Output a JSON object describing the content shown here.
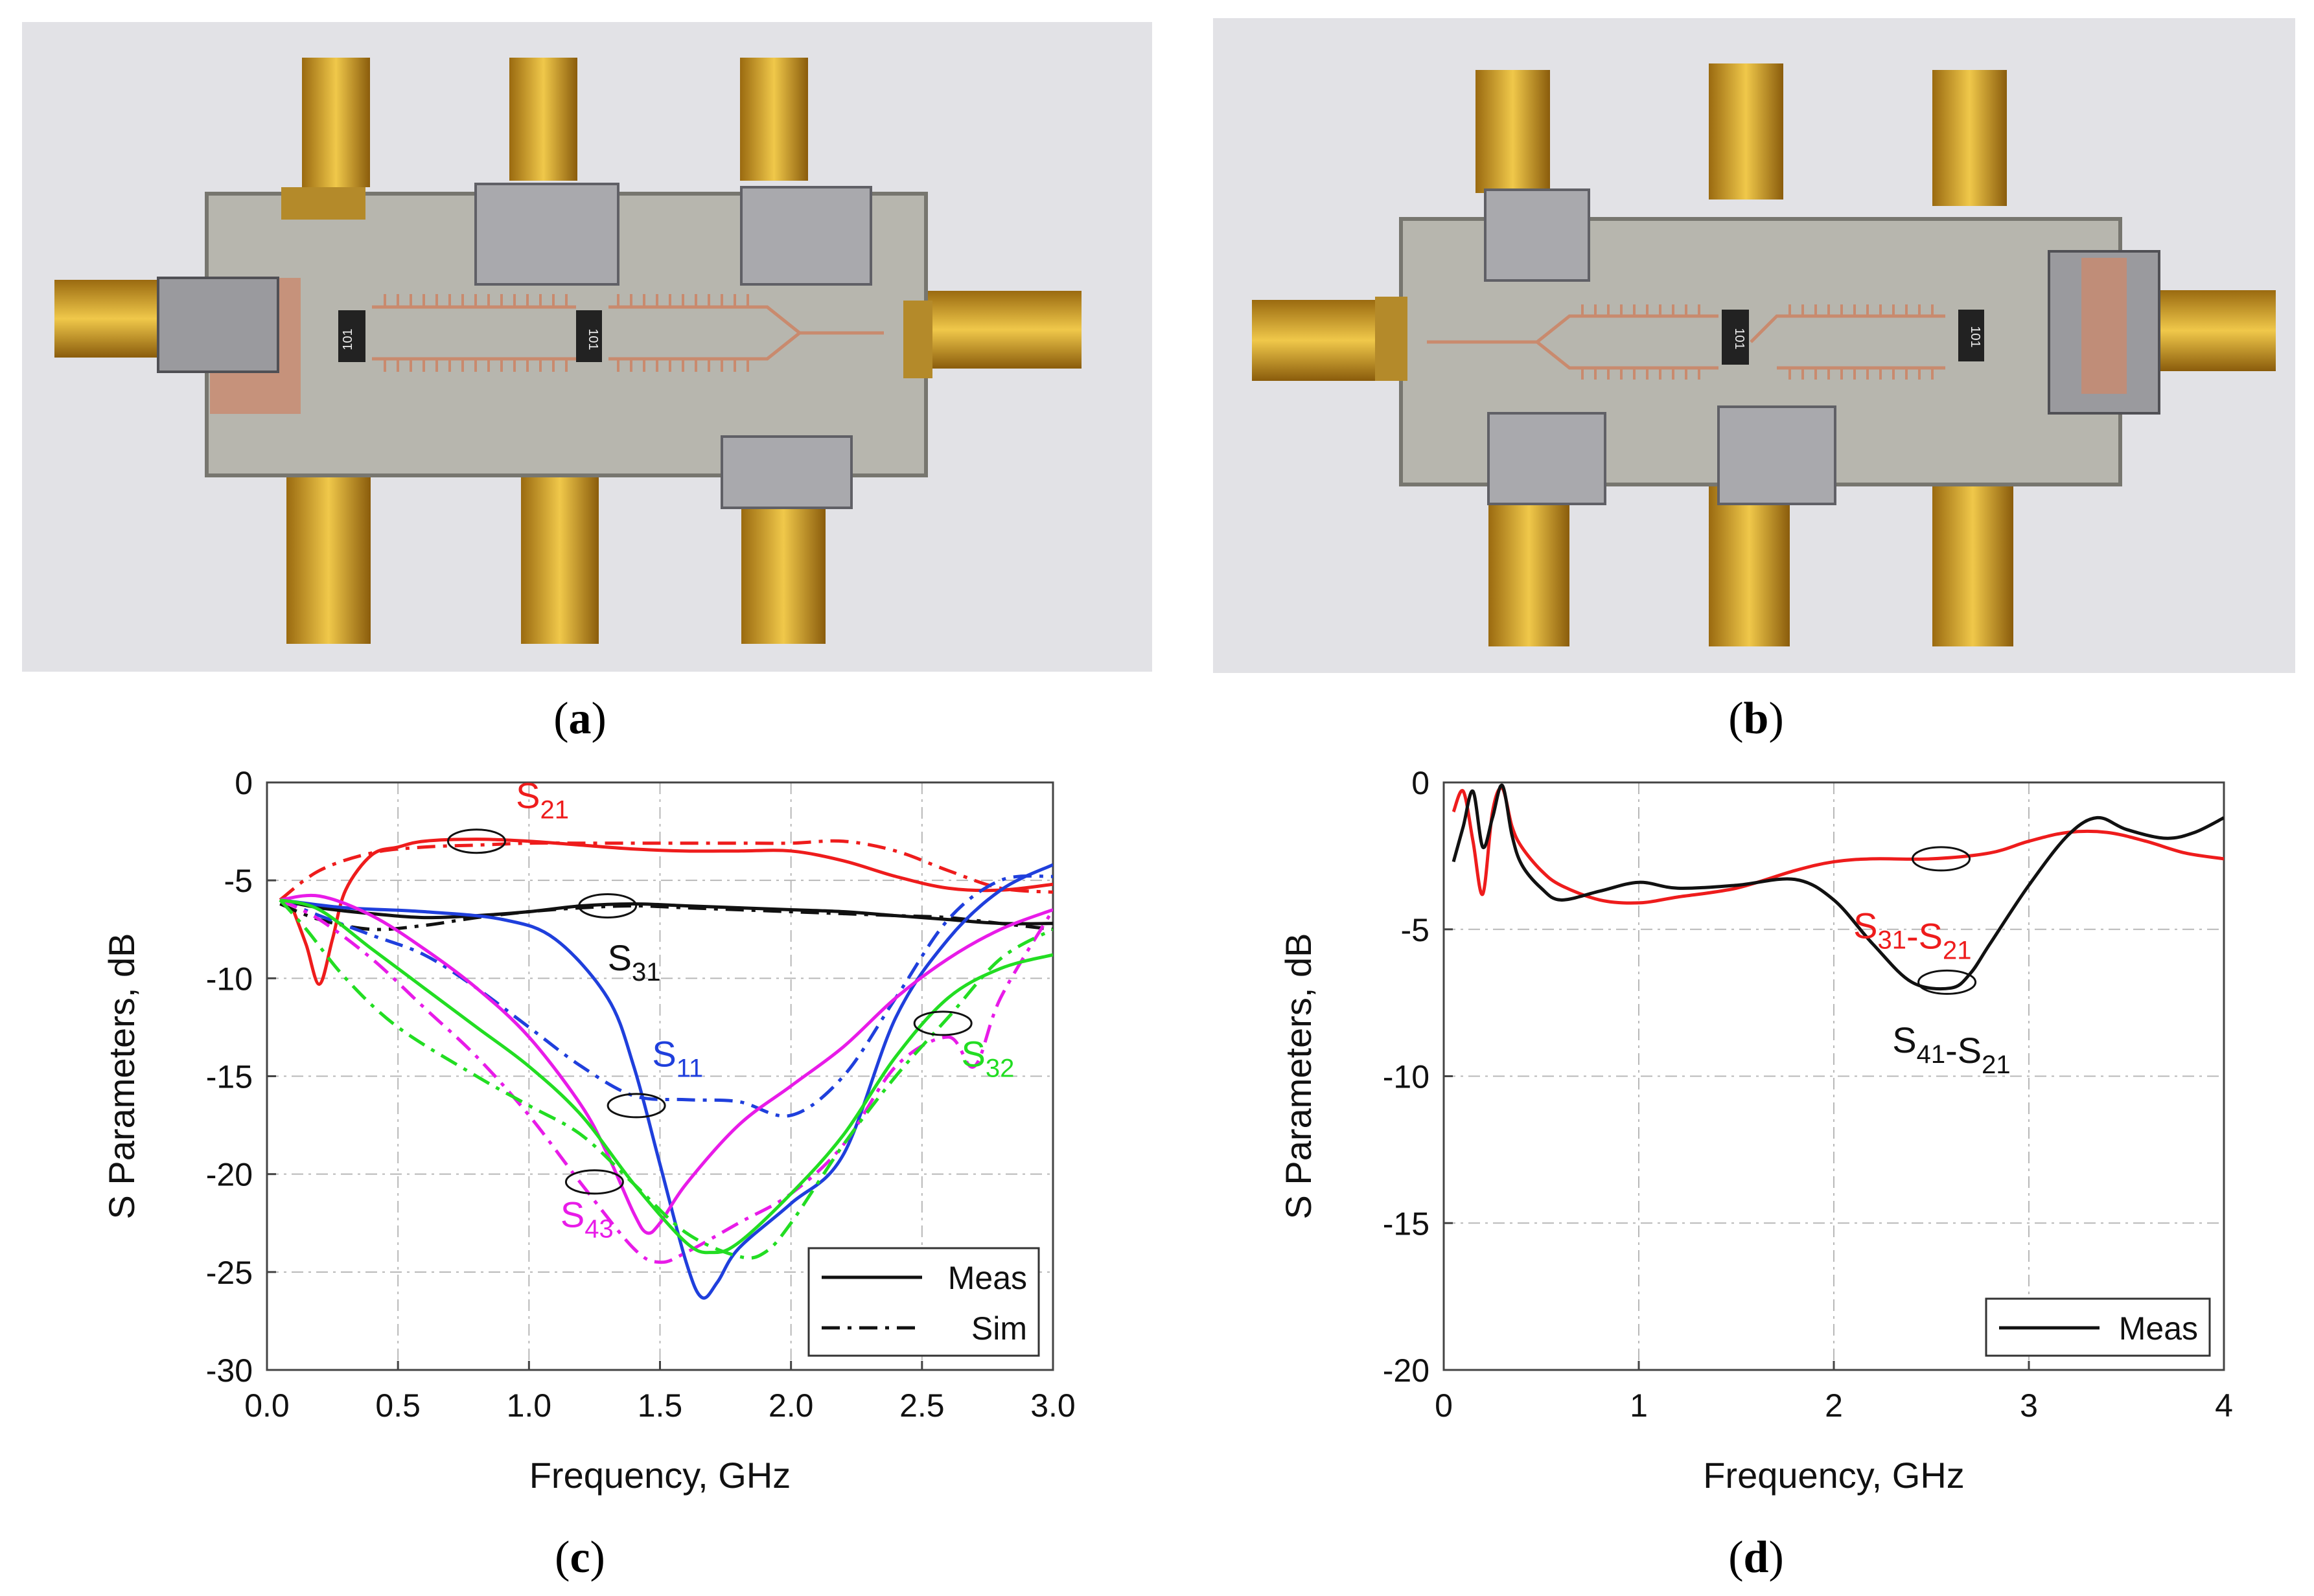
{
  "panels": {
    "a": {
      "label": "a"
    },
    "b": {
      "label": "b"
    },
    "c": {
      "label": "c"
    },
    "d": {
      "label": "d"
    }
  },
  "photo_a": {
    "resistor_marks": [
      "101",
      "101"
    ]
  },
  "photo_b": {
    "resistor_marks": [
      "101",
      "101"
    ]
  },
  "colors": {
    "red": "#ee1c1c",
    "black": "#111111",
    "blue": "#1f3fdc",
    "magenta": "#e81be8",
    "green": "#22dd22"
  },
  "chart_data": [
    {
      "panel": "c",
      "type": "line",
      "xlabel": "Frequency, GHz",
      "ylabel": "S Parameters, dB",
      "xlim": [
        0,
        3
      ],
      "ylim": [
        -30,
        0
      ],
      "xticks": [
        "0.0",
        "0.5",
        "1.0",
        "1.5",
        "2.0",
        "2.5",
        "3.0"
      ],
      "yticks": [
        "0",
        "-5",
        "-10",
        "-15",
        "-20",
        "-25",
        "-30"
      ],
      "grid": true,
      "legend": {
        "position": "bottom-right",
        "entries": [
          {
            "label": "Meas",
            "style": "solid"
          },
          {
            "label": "Sim",
            "style": "dashdot"
          }
        ]
      },
      "annotations": [
        {
          "main": "S",
          "sub": "21",
          "color": "#ee1c1c",
          "x": 0.95,
          "y": -1.3
        },
        {
          "main": "S",
          "sub": "31",
          "color": "#111111",
          "x": 1.3,
          "y": -9.6
        },
        {
          "main": "S",
          "sub": "11",
          "color": "#1f3fdc",
          "x": 1.47,
          "y": -14.5
        },
        {
          "main": "S",
          "sub": "32",
          "color": "#22dd22",
          "x": 2.65,
          "y": -14.5
        },
        {
          "main": "S",
          "sub": "43",
          "color": "#e81be8",
          "x": 1.12,
          "y": -22.7
        }
      ],
      "ellipses": [
        {
          "x": 0.8,
          "y": -3.0
        },
        {
          "x": 1.3,
          "y": -6.3
        },
        {
          "x": 1.41,
          "y": -16.5
        },
        {
          "x": 1.25,
          "y": -20.4
        },
        {
          "x": 2.58,
          "y": -12.3
        }
      ],
      "series": [
        {
          "series_key": "S21",
          "style": "solid",
          "color": "#ee1c1c",
          "x": [
            0.1,
            0.15,
            0.2,
            0.25,
            0.3,
            0.4,
            0.5,
            0.6,
            0.8,
            1.0,
            1.2,
            1.4,
            1.6,
            1.8,
            2.0,
            2.2,
            2.4,
            2.6,
            2.8,
            3.0
          ],
          "y": [
            -6.5,
            -8.3,
            -10.3,
            -8.0,
            -5.5,
            -3.7,
            -3.3,
            -3.0,
            -2.9,
            -3.0,
            -3.2,
            -3.4,
            -3.5,
            -3.5,
            -3.5,
            -4.0,
            -4.8,
            -5.4,
            -5.5,
            -5.2
          ]
        },
        {
          "series_key": "S21",
          "style": "dashdot",
          "color": "#ee1c1c",
          "x": [
            0.05,
            0.2,
            0.4,
            0.6,
            0.8,
            1.0,
            1.2,
            1.5,
            1.8,
            2.0,
            2.2,
            2.4,
            2.6,
            2.8,
            3.0
          ],
          "y": [
            -6.0,
            -4.5,
            -3.6,
            -3.3,
            -3.2,
            -3.1,
            -3.1,
            -3.1,
            -3.1,
            -3.1,
            -3.0,
            -3.5,
            -4.5,
            -5.4,
            -5.6
          ]
        },
        {
          "series_key": "S31",
          "style": "solid",
          "color": "#111111",
          "x": [
            0.05,
            0.2,
            0.4,
            0.6,
            0.8,
            1.0,
            1.2,
            1.4,
            1.6,
            1.8,
            2.0,
            2.2,
            2.4,
            2.6,
            2.8,
            3.0
          ],
          "y": [
            -6.0,
            -6.4,
            -6.7,
            -6.9,
            -6.8,
            -6.6,
            -6.3,
            -6.2,
            -6.3,
            -6.4,
            -6.5,
            -6.6,
            -6.8,
            -7.0,
            -7.2,
            -7.2
          ]
        },
        {
          "series_key": "S31",
          "style": "dashdot",
          "color": "#111111",
          "x": [
            0.05,
            0.2,
            0.4,
            0.6,
            0.8,
            1.0,
            1.2,
            1.4,
            1.6,
            1.8,
            2.0,
            2.2,
            2.4,
            2.6,
            2.8,
            3.0
          ],
          "y": [
            -6.2,
            -7.0,
            -7.5,
            -7.3,
            -6.9,
            -6.6,
            -6.4,
            -6.3,
            -6.4,
            -6.5,
            -6.6,
            -6.7,
            -6.8,
            -6.9,
            -7.2,
            -7.5
          ]
        },
        {
          "series_key": "S11",
          "style": "solid",
          "color": "#1f3fdc",
          "x": [
            0.05,
            0.3,
            0.6,
            0.9,
            1.1,
            1.3,
            1.4,
            1.5,
            1.6,
            1.66,
            1.72,
            1.8,
            2.0,
            2.2,
            2.4,
            2.6,
            2.8,
            3.0
          ],
          "y": [
            -6.0,
            -6.4,
            -6.6,
            -7.0,
            -8.0,
            -11.0,
            -14.5,
            -19.5,
            -24.5,
            -26.3,
            -25.5,
            -23.8,
            -21.5,
            -19.0,
            -12.0,
            -8.0,
            -5.5,
            -4.2
          ]
        },
        {
          "series_key": "S11",
          "style": "dashdot",
          "color": "#1f3fdc",
          "x": [
            0.05,
            0.2,
            0.4,
            0.6,
            0.8,
            1.0,
            1.2,
            1.4,
            1.6,
            1.8,
            2.0,
            2.2,
            2.4,
            2.6,
            2.8,
            3.0
          ],
          "y": [
            -6.0,
            -6.8,
            -7.8,
            -8.8,
            -10.5,
            -12.5,
            -14.5,
            -16.0,
            -16.2,
            -16.3,
            -17.0,
            -15.0,
            -11.0,
            -7.0,
            -5.0,
            -4.8
          ]
        },
        {
          "series_key": "S43",
          "style": "solid",
          "color": "#e81be8",
          "x": [
            0.05,
            0.2,
            0.4,
            0.6,
            0.8,
            1.0,
            1.2,
            1.3,
            1.4,
            1.45,
            1.5,
            1.6,
            1.8,
            2.0,
            2.2,
            2.4,
            2.6,
            2.8,
            3.0
          ],
          "y": [
            -6.0,
            -5.8,
            -6.8,
            -8.5,
            -10.5,
            -13.0,
            -16.5,
            -19.0,
            -22.0,
            -23.0,
            -22.5,
            -20.5,
            -17.5,
            -15.5,
            -13.5,
            -11.0,
            -9.0,
            -7.5,
            -6.5
          ]
        },
        {
          "series_key": "S43",
          "style": "dashdot",
          "color": "#e81be8",
          "x": [
            0.05,
            0.2,
            0.4,
            0.6,
            0.8,
            1.0,
            1.2,
            1.4,
            1.5,
            1.6,
            1.8,
            2.0,
            2.2,
            2.4,
            2.6,
            2.7,
            2.8,
            3.0
          ],
          "y": [
            -6.0,
            -7.0,
            -9.0,
            -11.5,
            -14.0,
            -17.0,
            -20.5,
            -23.8,
            -24.5,
            -24.0,
            -22.5,
            -21.0,
            -18.5,
            -14.5,
            -13.0,
            -14.5,
            -11.0,
            -6.5
          ]
        },
        {
          "series_key": "S32",
          "style": "solid",
          "color": "#22dd22",
          "x": [
            0.05,
            0.2,
            0.4,
            0.6,
            0.8,
            1.0,
            1.2,
            1.4,
            1.6,
            1.7,
            1.8,
            2.0,
            2.2,
            2.4,
            2.6,
            2.8,
            3.0
          ],
          "y": [
            -6.0,
            -6.5,
            -8.5,
            -10.5,
            -12.5,
            -14.5,
            -17.0,
            -20.5,
            -23.5,
            -24.0,
            -23.5,
            -21.0,
            -18.0,
            -14.0,
            -11.0,
            -9.5,
            -8.8
          ]
        },
        {
          "series_key": "S32",
          "style": "dashdot",
          "color": "#22dd22",
          "x": [
            0.05,
            0.15,
            0.3,
            0.5,
            0.8,
            1.0,
            1.2,
            1.4,
            1.6,
            1.8,
            1.9,
            2.0,
            2.2,
            2.4,
            2.6,
            2.8,
            3.0
          ],
          "y": [
            -6.0,
            -7.5,
            -10.0,
            -12.5,
            -15.0,
            -16.5,
            -18.0,
            -20.5,
            -23.0,
            -24.2,
            -24.0,
            -22.5,
            -18.5,
            -15.0,
            -12.0,
            -9.0,
            -7.5
          ]
        }
      ]
    },
    {
      "panel": "d",
      "type": "line",
      "xlabel": "Frequency, GHz",
      "ylabel": "S Parameters, dB",
      "xlim": [
        0,
        4
      ],
      "ylim": [
        -20,
        0
      ],
      "xticks": [
        "0",
        "1",
        "2",
        "3",
        "4"
      ],
      "yticks": [
        "0",
        "-5",
        "-10",
        "-15",
        "-20"
      ],
      "grid": true,
      "legend": {
        "position": "bottom-right",
        "entries": [
          {
            "label": "Meas",
            "style": "solid"
          }
        ]
      },
      "annotations": [
        {
          "parts": [
            [
              "S",
              "31"
            ],
            [
              "-S",
              "21"
            ]
          ],
          "color": "#ee1c1c",
          "x": 2.1,
          "y": -5.3
        },
        {
          "parts": [
            [
              "S",
              "41"
            ],
            [
              "-S",
              "21"
            ]
          ],
          "color": "#111111",
          "x": 2.3,
          "y": -9.2
        }
      ],
      "ellipses": [
        {
          "x": 2.55,
          "y": -2.6
        },
        {
          "x": 2.58,
          "y": -6.8
        }
      ],
      "series": [
        {
          "series_key": "S31-S21",
          "style": "solid",
          "color": "#ee1c1c",
          "x": [
            0.05,
            0.1,
            0.15,
            0.2,
            0.25,
            0.3,
            0.35,
            0.4,
            0.5,
            0.6,
            0.8,
            1.0,
            1.2,
            1.5,
            1.8,
            2.0,
            2.2,
            2.5,
            2.8,
            3.0,
            3.2,
            3.4,
            3.6,
            3.8,
            4.0
          ],
          "y": [
            -1.0,
            -0.3,
            -2.0,
            -3.8,
            -1.0,
            -0.2,
            -1.5,
            -2.2,
            -3.0,
            -3.5,
            -4.0,
            -4.1,
            -3.9,
            -3.6,
            -3.0,
            -2.7,
            -2.6,
            -2.6,
            -2.4,
            -2.0,
            -1.7,
            -1.7,
            -2.0,
            -2.4,
            -2.6
          ]
        },
        {
          "series_key": "S41-S21",
          "style": "solid",
          "color": "#111111",
          "x": [
            0.05,
            0.1,
            0.15,
            0.2,
            0.25,
            0.3,
            0.35,
            0.4,
            0.5,
            0.6,
            0.8,
            1.0,
            1.2,
            1.5,
            1.8,
            2.0,
            2.2,
            2.4,
            2.6,
            2.7,
            2.8,
            3.0,
            3.2,
            3.35,
            3.5,
            3.7,
            3.85,
            4.0
          ],
          "y": [
            -2.7,
            -1.5,
            -0.3,
            -2.2,
            -1.2,
            -0.1,
            -1.8,
            -2.8,
            -3.6,
            -4.0,
            -3.7,
            -3.4,
            -3.6,
            -3.5,
            -3.3,
            -4.0,
            -5.5,
            -6.8,
            -7.0,
            -6.5,
            -5.5,
            -3.5,
            -1.8,
            -1.2,
            -1.6,
            -1.9,
            -1.7,
            -1.2
          ]
        }
      ]
    }
  ]
}
